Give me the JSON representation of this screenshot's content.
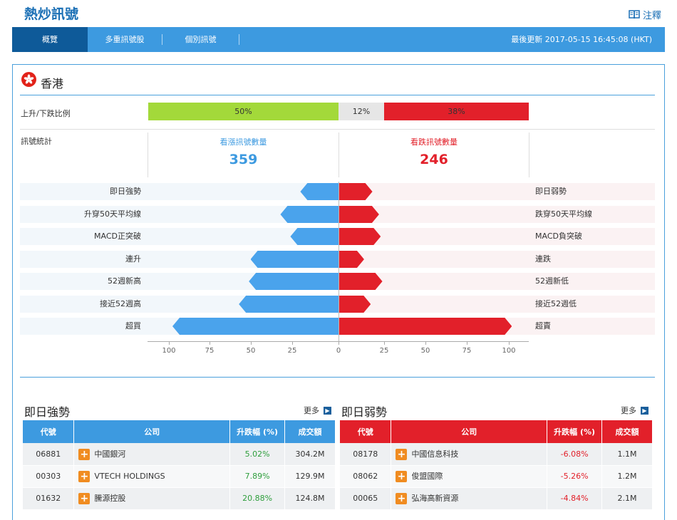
{
  "header": {
    "title": "熱炒訊號",
    "notes_label": "注釋"
  },
  "nav": {
    "tabs": [
      {
        "label": "概覽"
      },
      {
        "label": "多重訊號股"
      },
      {
        "label": "個別訊號"
      }
    ],
    "updated_label": "最後更新 2017-05-15 16:45:08 (HKT)"
  },
  "region": {
    "name": "香港"
  },
  "ratio": {
    "label": "上升/下跌比例",
    "up_pct": "50%",
    "flat_pct": "12%",
    "down_pct": "38%",
    "colors": {
      "up": "#a3d93a",
      "flat": "#e6e6e6",
      "down": "#e2202a"
    }
  },
  "signals": {
    "label": "訊號統計",
    "bull_label": "看漲訊號數量",
    "bull_count": "359",
    "bear_label": "看跌訊號數量",
    "bear_count": "246"
  },
  "chart_data": {
    "type": "bar",
    "orientation": "horizontal-diverging",
    "categories_left": [
      "即日強勢",
      "升穿50天平均線",
      "MACD正突破",
      "連升",
      "52週新高",
      "接近52週高",
      "超買"
    ],
    "categories_right": [
      "即日弱勢",
      "跌穿50天平均線",
      "MACD負突破",
      "連跌",
      "52週新低",
      "接近52週低",
      "超賣"
    ],
    "series": [
      {
        "values": [
          23,
          35,
          29,
          53,
          54,
          60,
          100
        ],
        "color": "#4aa3ec"
      },
      {
        "values": [
          20,
          24,
          25,
          15,
          26,
          19,
          104
        ],
        "color": "#e2202a"
      }
    ],
    "ticks_left": [
      "100",
      "75",
      "50",
      "25",
      "0"
    ],
    "ticks_right": [
      "25",
      "50",
      "75",
      "100"
    ],
    "xlim": [
      0,
      100
    ]
  },
  "strong": {
    "title": "即日強勢",
    "more_label": "更多",
    "headers": [
      "代號",
      "公司",
      "升跌幅 (%)",
      "成交額"
    ],
    "rows": [
      {
        "code": "06881",
        "name": "中國銀河",
        "change": "5.02%",
        "turnover": "304.2M"
      },
      {
        "code": "00303",
        "name": "VTECH HOLDINGS",
        "change": "7.89%",
        "turnover": "129.9M"
      },
      {
        "code": "01632",
        "name": "騰源控股",
        "change": "20.88%",
        "turnover": "124.8M"
      }
    ]
  },
  "weak": {
    "title": "即日弱勢",
    "more_label": "更多",
    "headers": [
      "代號",
      "公司",
      "升跌幅 (%)",
      "成交額"
    ],
    "rows": [
      {
        "code": "08178",
        "name": "中國信息科技",
        "change": "-6.08%",
        "turnover": "1.1M"
      },
      {
        "code": "08062",
        "name": "俊盟國際",
        "change": "-5.26%",
        "turnover": "1.2M"
      },
      {
        "code": "00065",
        "name": "弘海高新資源",
        "change": "-4.84%",
        "turnover": "2.1M"
      }
    ]
  }
}
